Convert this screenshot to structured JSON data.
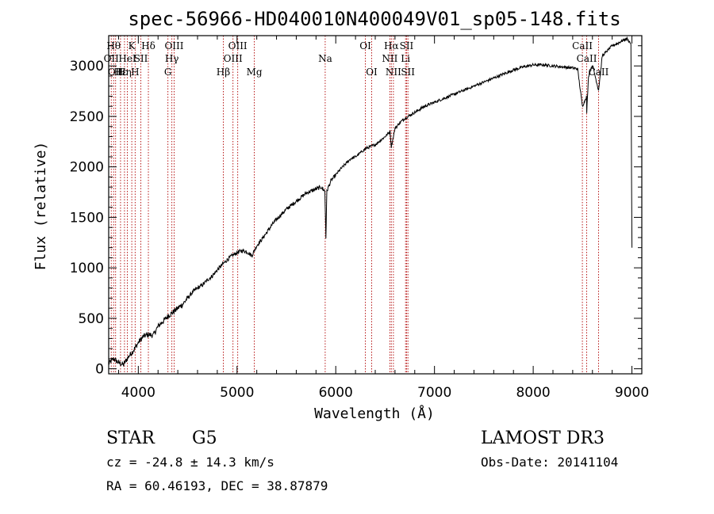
{
  "chart_data": {
    "type": "line",
    "title": "spec-56966-HD040010N400049V01_sp05-148.fits",
    "xlabel": "Wavelength (Å)",
    "ylabel": "Flux (relative)",
    "xlim": [
      3700,
      9100
    ],
    "ylim": [
      -50,
      3300
    ],
    "xticks": [
      4000,
      5000,
      6000,
      7000,
      8000,
      9000
    ],
    "yticks": [
      0,
      500,
      1000,
      1500,
      2000,
      2500,
      3000
    ],
    "series": [
      {
        "name": "flux",
        "x": [
          3700,
          3750,
          3800,
          3850,
          3900,
          3950,
          4000,
          4050,
          4100,
          4150,
          4200,
          4250,
          4300,
          4350,
          4400,
          4450,
          4500,
          4550,
          4600,
          4650,
          4700,
          4750,
          4800,
          4850,
          4900,
          4950,
          5000,
          5050,
          5100,
          5150,
          5200,
          5250,
          5300,
          5350,
          5400,
          5450,
          5500,
          5550,
          5600,
          5650,
          5700,
          5750,
          5800,
          5850,
          5890,
          5900,
          5910,
          5950,
          6000,
          6050,
          6100,
          6150,
          6200,
          6250,
          6300,
          6350,
          6400,
          6450,
          6500,
          6550,
          6563,
          6600,
          6650,
          6700,
          6750,
          6800,
          6850,
          6900,
          6950,
          7000,
          7100,
          7200,
          7300,
          7400,
          7500,
          7600,
          7700,
          7800,
          7900,
          8000,
          8100,
          8200,
          8300,
          8400,
          8450,
          8498,
          8540,
          8542,
          8560,
          8600,
          8662,
          8700,
          8750,
          8800,
          8850,
          8900,
          8950,
          8990,
          9000
        ],
        "y": [
          50,
          100,
          60,
          40,
          120,
          180,
          260,
          320,
          340,
          330,
          420,
          470,
          520,
          560,
          600,
          640,
          700,
          760,
          800,
          830,
          880,
          920,
          980,
          1030,
          1080,
          1120,
          1150,
          1170,
          1160,
          1120,
          1220,
          1280,
          1350,
          1420,
          1480,
          1530,
          1580,
          1620,
          1660,
          1700,
          1740,
          1760,
          1780,
          1800,
          1760,
          1300,
          1760,
          1860,
          1920,
          1980,
          2030,
          2080,
          2100,
          2140,
          2180,
          2200,
          2220,
          2260,
          2300,
          2350,
          2200,
          2380,
          2440,
          2480,
          2510,
          2540,
          2570,
          2600,
          2620,
          2640,
          2680,
          2720,
          2760,
          2800,
          2840,
          2880,
          2920,
          2960,
          2990,
          3010,
          3010,
          3000,
          2990,
          2980,
          2970,
          2600,
          2700,
          2540,
          2900,
          3010,
          2760,
          3100,
          3150,
          3200,
          3220,
          3250,
          3270,
          3220,
          1200
        ]
      }
    ],
    "spectral_lines": [
      {
        "wavelength": 3726,
        "label": "OII",
        "row": 2
      },
      {
        "wavelength": 3750,
        "label": "Hθ",
        "row": 1
      },
      {
        "wavelength": 3770,
        "label": "OII",
        "row": 3
      },
      {
        "wavelength": 3820,
        "label": "Hε",
        "row": 3
      },
      {
        "wavelength": 3860,
        "label": "Hη",
        "row": 3
      },
      {
        "wavelength": 3889,
        "label": "HeI",
        "row": 2
      },
      {
        "wavelength": 3934,
        "label": "K",
        "row": 1
      },
      {
        "wavelength": 3968,
        "label": "H",
        "row": 3
      },
      {
        "wavelength": 4026,
        "label": "SII",
        "row": 2
      },
      {
        "wavelength": 4102,
        "label": "Hδ",
        "row": 1
      },
      {
        "wavelength": 4300,
        "label": "G",
        "row": 3
      },
      {
        "wavelength": 4340,
        "label": "Hγ",
        "row": 2
      },
      {
        "wavelength": 4363,
        "label": "OIII",
        "row": 1
      },
      {
        "wavelength": 4861,
        "label": "Hβ",
        "row": 3
      },
      {
        "wavelength": 4959,
        "label": "OIII",
        "row": 2
      },
      {
        "wavelength": 5007,
        "label": "OIII",
        "row": 1
      },
      {
        "wavelength": 5175,
        "label": "Mg",
        "row": 3
      },
      {
        "wavelength": 5893,
        "label": "Na",
        "row": 2
      },
      {
        "wavelength": 6300,
        "label": "OI",
        "row": 1
      },
      {
        "wavelength": 6364,
        "label": "OI",
        "row": 3
      },
      {
        "wavelength": 6548,
        "label": "NII",
        "row": 2
      },
      {
        "wavelength": 6563,
        "label": "Hα",
        "row": 1
      },
      {
        "wavelength": 6584,
        "label": "NII",
        "row": 3
      },
      {
        "wavelength": 6707,
        "label": "Li",
        "row": 2
      },
      {
        "wavelength": 6717,
        "label": "SII",
        "row": 1
      },
      {
        "wavelength": 6731,
        "label": "SII",
        "row": 3
      },
      {
        "wavelength": 8498,
        "label": "CaII",
        "row": 1
      },
      {
        "wavelength": 8542,
        "label": "CaII",
        "row": 2
      },
      {
        "wavelength": 8662,
        "label": "CaII",
        "row": 3
      }
    ]
  },
  "info": {
    "object_class": "STAR",
    "subclass": "G5",
    "survey": "LAMOST DR3",
    "cz": "cz = -24.8 ± 14.3 km/s",
    "obs_date": "Obs-Date: 20141104",
    "coords": "RA =  60.46193, DEC =  38.87879"
  },
  "colors": {
    "spectrum": "#000000",
    "line_marker": "#b00000",
    "axis": "#000000"
  }
}
